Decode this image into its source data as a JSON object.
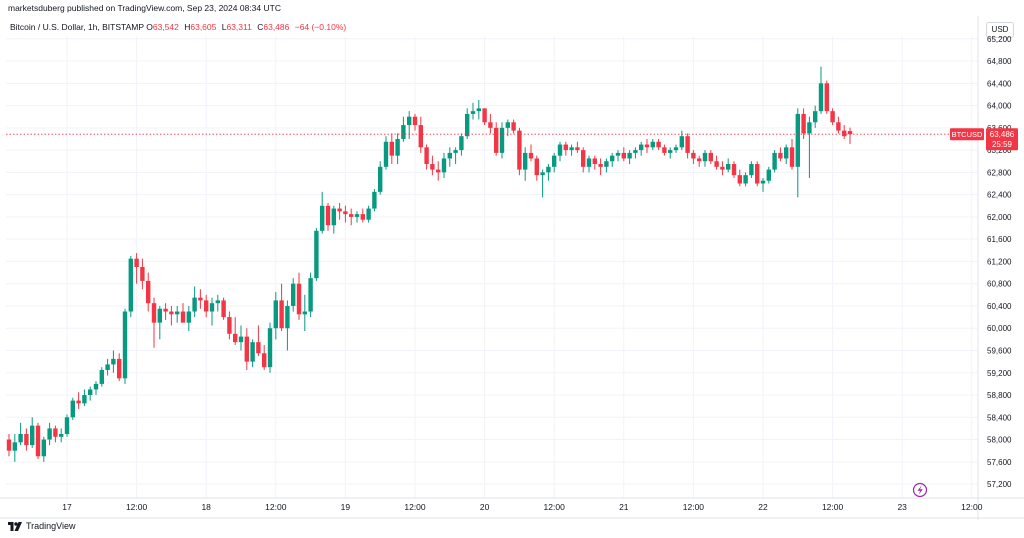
{
  "header": {
    "published": "marketsduberg published on TradingView.com, Sep 23, 2024 08:34 UTC"
  },
  "legend": {
    "symbol": "Bitcoin / U.S. Dollar, 1h, BITSTAMP",
    "o_label": "O",
    "o_value": "63,542",
    "h_label": "H",
    "h_value": "63,605",
    "l_label": "L",
    "l_value": "63,311",
    "c_label": "C",
    "c_value": "63,486",
    "change": "−64 (−0.10%)"
  },
  "currency": "USD",
  "price_tag": {
    "symbol": "BTCUSD",
    "price": "63,486",
    "countdown": "25:59"
  },
  "footer": {
    "brand": "TradingView"
  },
  "colors": {
    "up": "#089981",
    "down": "#f23645",
    "grid": "#f0f3fa",
    "text": "#131722"
  },
  "chart_data": {
    "type": "candlestick",
    "title": "",
    "y_ticks": [
      57200,
      57600,
      58000,
      58400,
      58800,
      59200,
      59600,
      60000,
      60400,
      60800,
      61200,
      61600,
      62000,
      62400,
      62800,
      63200,
      63600,
      64000,
      64400,
      64800,
      65200
    ],
    "y_tick_labels": [
      "57,200",
      "57,600",
      "58,000",
      "58,400",
      "58,800",
      "59,200",
      "59,600",
      "60,000",
      "60,400",
      "60,800",
      "61,200",
      "61,600",
      "62,000",
      "62,400",
      "62,800",
      "63,200",
      "63,600",
      "64,000",
      "64,400",
      "64,800",
      "65,200"
    ],
    "ylim": [
      56950,
      65250
    ],
    "x_ticks": [
      {
        "hour": 10,
        "label": "17"
      },
      {
        "hour": 22,
        "label": "12:00"
      },
      {
        "hour": 34,
        "label": "18"
      },
      {
        "hour": 46,
        "label": "12:00"
      },
      {
        "hour": 58,
        "label": "19"
      },
      {
        "hour": 70,
        "label": "12:00"
      },
      {
        "hour": 82,
        "label": "20"
      },
      {
        "hour": 94,
        "label": "12:00"
      },
      {
        "hour": 106,
        "label": "21"
      },
      {
        "hour": 118,
        "label": "12:00"
      },
      {
        "hour": 130,
        "label": "22"
      },
      {
        "hour": 142,
        "label": "12:00"
      },
      {
        "hour": 154,
        "label": "23"
      },
      {
        "hour": 166,
        "label": "12:00"
      }
    ],
    "last_price": 63486,
    "candles": [
      [
        58000,
        58100,
        57700,
        57800
      ],
      [
        57800,
        58100,
        57600,
        57950
      ],
      [
        57950,
        58300,
        57900,
        58100
      ],
      [
        58100,
        58200,
        57800,
        57900
      ],
      [
        57900,
        58400,
        57850,
        58250
      ],
      [
        58250,
        58300,
        57650,
        57700
      ],
      [
        57700,
        58050,
        57600,
        58000
      ],
      [
        58000,
        58300,
        57900,
        58200
      ],
      [
        58200,
        58250,
        57950,
        58050
      ],
      [
        58050,
        58200,
        57950,
        58100
      ],
      [
        58100,
        58450,
        58050,
        58400
      ],
      [
        58400,
        58750,
        58350,
        58700
      ],
      [
        58700,
        58850,
        58550,
        58650
      ],
      [
        58650,
        58900,
        58600,
        58800
      ],
      [
        58800,
        58950,
        58700,
        58900
      ],
      [
        58900,
        59050,
        58800,
        59000
      ],
      [
        59000,
        59300,
        58950,
        59250
      ],
      [
        59250,
        59450,
        59150,
        59350
      ],
      [
        59350,
        59600,
        59200,
        59450
      ],
      [
        59450,
        59550,
        59050,
        59100
      ],
      [
        59100,
        60350,
        59000,
        60300
      ],
      [
        60300,
        61300,
        60200,
        61250
      ],
      [
        61250,
        61350,
        60800,
        61100
      ],
      [
        61100,
        61250,
        60700,
        60850
      ],
      [
        60850,
        61000,
        60300,
        60450
      ],
      [
        60450,
        60550,
        59650,
        60100
      ],
      [
        60100,
        60400,
        59800,
        60350
      ],
      [
        60350,
        60450,
        60150,
        60300
      ],
      [
        60300,
        60400,
        60050,
        60250
      ],
      [
        60250,
        60400,
        60100,
        60300
      ],
      [
        60300,
        60450,
        60150,
        60100
      ],
      [
        60100,
        60400,
        59950,
        60300
      ],
      [
        60300,
        60750,
        60200,
        60550
      ],
      [
        60550,
        60700,
        60350,
        60500
      ],
      [
        60500,
        60600,
        60200,
        60300
      ],
      [
        60300,
        60550,
        60050,
        60450
      ],
      [
        60450,
        60600,
        60300,
        60500
      ],
      [
        60500,
        60550,
        60150,
        60200
      ],
      [
        60200,
        60300,
        59800,
        59900
      ],
      [
        59900,
        60200,
        59700,
        59750
      ],
      [
        59750,
        60050,
        59600,
        59850
      ],
      [
        59850,
        60000,
        59250,
        59400
      ],
      [
        59400,
        59800,
        59300,
        59750
      ],
      [
        59750,
        60050,
        59500,
        59550
      ],
      [
        59550,
        59700,
        59250,
        59300
      ],
      [
        59300,
        60100,
        59200,
        60000
      ],
      [
        60000,
        60650,
        59800,
        60500
      ],
      [
        60500,
        60800,
        59950,
        60000
      ],
      [
        60000,
        60500,
        59600,
        60400
      ],
      [
        60400,
        60900,
        60300,
        60800
      ],
      [
        60800,
        61000,
        60150,
        60250
      ],
      [
        60250,
        60600,
        59950,
        60300
      ],
      [
        60300,
        61000,
        60200,
        60900
      ],
      [
        60900,
        61800,
        60850,
        61750
      ],
      [
        61750,
        62450,
        61700,
        62200
      ],
      [
        62200,
        62250,
        61750,
        61850
      ],
      [
        61850,
        62200,
        61700,
        62150
      ],
      [
        62150,
        62250,
        61950,
        62100
      ],
      [
        62100,
        62200,
        61900,
        62050
      ],
      [
        62050,
        62150,
        61850,
        62000
      ],
      [
        62000,
        62100,
        61900,
        62050
      ],
      [
        62050,
        62150,
        61900,
        61950
      ],
      [
        61950,
        62200,
        61900,
        62150
      ],
      [
        62150,
        62500,
        62100,
        62450
      ],
      [
        62450,
        63000,
        62400,
        62900
      ],
      [
        62900,
        63450,
        62850,
        63350
      ],
      [
        63350,
        63500,
        62950,
        63100
      ],
      [
        63100,
        63500,
        62950,
        63400
      ],
      [
        63400,
        63800,
        63350,
        63650
      ],
      [
        63650,
        63900,
        63400,
        63800
      ],
      [
        63800,
        63850,
        63550,
        63650
      ],
      [
        63650,
        63800,
        63150,
        63250
      ],
      [
        63250,
        63300,
        62850,
        62950
      ],
      [
        62950,
        63100,
        62750,
        62850
      ],
      [
        62850,
        63000,
        62650,
        62800
      ],
      [
        62800,
        63150,
        62700,
        63050
      ],
      [
        63050,
        63250,
        62900,
        63150
      ],
      [
        63150,
        63250,
        62950,
        63200
      ],
      [
        63200,
        63500,
        63100,
        63450
      ],
      [
        63450,
        63950,
        63400,
        63850
      ],
      [
        63850,
        64050,
        63750,
        63900
      ],
      [
        63900,
        64100,
        63750,
        63950
      ],
      [
        63950,
        63950,
        63650,
        63700
      ],
      [
        63700,
        63850,
        63500,
        63600
      ],
      [
        63600,
        63700,
        63100,
        63150
      ],
      [
        63150,
        63700,
        63050,
        63600
      ],
      [
        63600,
        63750,
        63450,
        63700
      ],
      [
        63700,
        63750,
        63500,
        63550
      ],
      [
        63550,
        63600,
        62750,
        62850
      ],
      [
        62850,
        63250,
        62650,
        63150
      ],
      [
        63150,
        63300,
        63000,
        63050
      ],
      [
        63050,
        63100,
        62650,
        62750
      ],
      [
        62750,
        62850,
        62350,
        62800
      ],
      [
        62800,
        62950,
        62650,
        62900
      ],
      [
        62900,
        63150,
        62800,
        63100
      ],
      [
        63100,
        63350,
        63000,
        63300
      ],
      [
        63300,
        63350,
        63100,
        63200
      ],
      [
        63200,
        63300,
        63100,
        63250
      ],
      [
        63250,
        63350,
        63150,
        63200
      ],
      [
        63200,
        63250,
        62800,
        62900
      ],
      [
        62900,
        63100,
        62800,
        63050
      ],
      [
        63050,
        63100,
        62850,
        62950
      ],
      [
        62950,
        63050,
        62750,
        62900
      ],
      [
        62900,
        63050,
        62800,
        63000
      ],
      [
        63000,
        63150,
        62900,
        63100
      ],
      [
        63100,
        63200,
        63000,
        63150
      ],
      [
        63150,
        63250,
        63000,
        63050
      ],
      [
        63050,
        63200,
        62950,
        63150
      ],
      [
        63150,
        63250,
        63050,
        63200
      ],
      [
        63200,
        63350,
        63100,
        63300
      ],
      [
        63300,
        63400,
        63150,
        63250
      ],
      [
        63250,
        63400,
        63200,
        63350
      ],
      [
        63350,
        63400,
        63200,
        63250
      ],
      [
        63250,
        63300,
        63100,
        63150
      ],
      [
        63150,
        63250,
        63050,
        63200
      ],
      [
        63200,
        63300,
        63150,
        63250
      ],
      [
        63250,
        63550,
        63200,
        63450
      ],
      [
        63450,
        63500,
        63050,
        63150
      ],
      [
        63150,
        63200,
        62950,
        63050
      ],
      [
        63050,
        63100,
        62900,
        63000
      ],
      [
        63000,
        63200,
        62900,
        63150
      ],
      [
        63150,
        63200,
        62950,
        63000
      ],
      [
        63000,
        63100,
        62850,
        62900
      ],
      [
        62900,
        63000,
        62750,
        62850
      ],
      [
        62850,
        63050,
        62800,
        62950
      ],
      [
        62950,
        63000,
        62700,
        62750
      ],
      [
        62750,
        62850,
        62550,
        62600
      ],
      [
        62600,
        62800,
        62550,
        62750
      ],
      [
        62750,
        63000,
        62700,
        62950
      ],
      [
        62950,
        63000,
        62550,
        62600
      ],
      [
        62600,
        62700,
        62450,
        62650
      ],
      [
        62650,
        62900,
        62600,
        62850
      ],
      [
        62850,
        63200,
        62800,
        63150
      ],
      [
        63150,
        63250,
        63000,
        63050
      ],
      [
        63050,
        63300,
        62950,
        63250
      ],
      [
        63250,
        63400,
        62850,
        62900
      ],
      [
        62900,
        63950,
        62350,
        63850
      ],
      [
        63850,
        63950,
        63400,
        63500
      ],
      [
        63500,
        63800,
        62700,
        63700
      ],
      [
        63700,
        64000,
        63600,
        63900
      ],
      [
        63900,
        64700,
        63850,
        64400
      ],
      [
        64400,
        64450,
        63850,
        63900
      ],
      [
        63900,
        63950,
        63650,
        63700
      ],
      [
        63700,
        63800,
        63500,
        63550
      ],
      [
        63550,
        63650,
        63400,
        63450
      ],
      [
        63542,
        63605,
        63311,
        63486
      ]
    ]
  }
}
